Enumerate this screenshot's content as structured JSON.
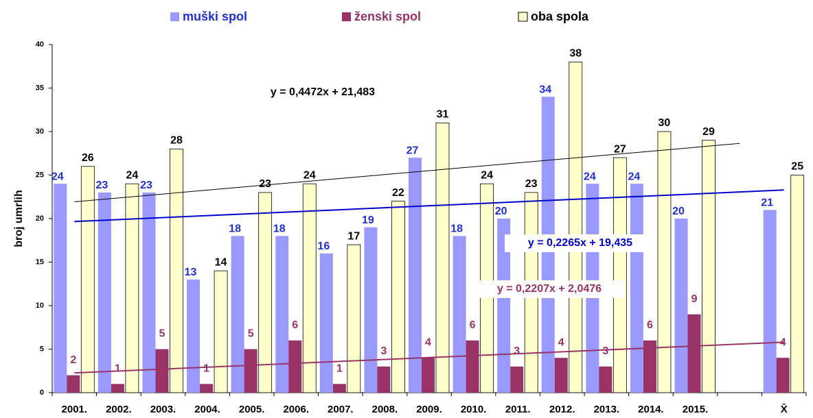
{
  "chart_data": {
    "type": "bar",
    "categories": [
      "2001.",
      "2002.",
      "2003.",
      "2004.",
      "2005.",
      "2006.",
      "2007.",
      "2008.",
      "2009.",
      "2010.",
      "2011.",
      "2012.",
      "2013.",
      "2014.",
      "2015.",
      null,
      "X̄"
    ],
    "series": [
      {
        "name": "muški spol",
        "color": "#9999ff",
        "label_color": "#1f2fd0",
        "values": [
          24,
          23,
          23,
          13,
          18,
          18,
          16,
          19,
          27,
          18,
          20,
          34,
          24,
          24,
          20,
          null,
          21
        ]
      },
      {
        "name": "ženski spol",
        "color": "#993366",
        "label_color": "#993366",
        "values": [
          2,
          1,
          5,
          1,
          5,
          6,
          1,
          3,
          4,
          6,
          3,
          4,
          3,
          6,
          9,
          null,
          4
        ]
      },
      {
        "name": "oba spola",
        "color": "#ffffcc",
        "label_color": "#000000",
        "values": [
          26,
          24,
          28,
          14,
          23,
          24,
          17,
          22,
          31,
          24,
          23,
          38,
          27,
          30,
          29,
          null,
          25
        ]
      }
    ],
    "trendlines": [
      {
        "series": 2,
        "slope": 0.4472,
        "intercept": 21.483,
        "x_range": [
          1,
          16
        ],
        "color": "#000000",
        "label": "y = 0,4472x + 21,483"
      },
      {
        "series": 0,
        "slope": 0.2265,
        "intercept": 19.435,
        "x_range": [
          1,
          17
        ],
        "color": "#0000cc",
        "label": "y = 0,2265x + 19,435"
      },
      {
        "series": 1,
        "slope": 0.2207,
        "intercept": 2.0476,
        "x_range": [
          1,
          17
        ],
        "color": "#993366",
        "label": "y = 0,2207x + 2,0476"
      }
    ],
    "y_label": "broj umrlih",
    "ylim": [
      0,
      40
    ],
    "yticks": [
      0,
      5,
      10,
      15,
      20,
      25,
      30,
      35,
      40
    ],
    "grid": false,
    "legend": "top"
  }
}
